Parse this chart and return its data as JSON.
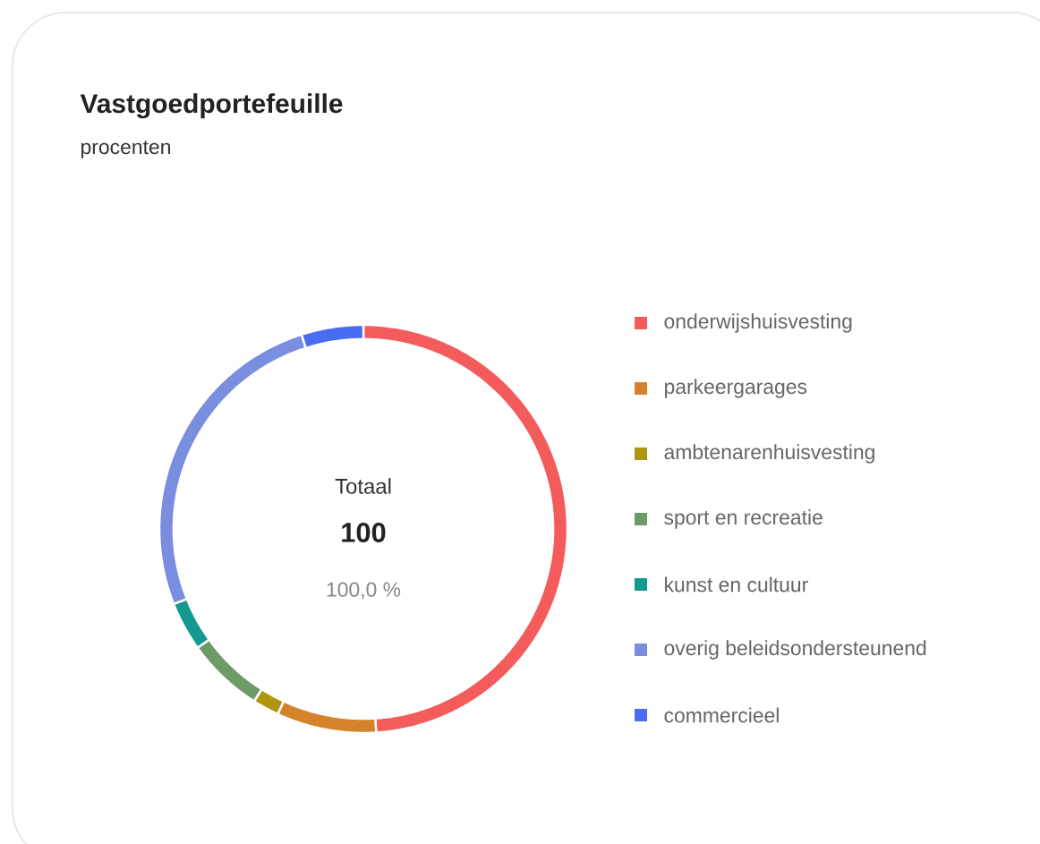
{
  "chart_data": {
    "type": "donut",
    "title": "Vastgoedportefeuille",
    "subtitle": "procenten",
    "categories": [
      "onderwijshuisvesting",
      "parkeergarages",
      "ambtenarenhuisvesting",
      "sport en recreatie",
      "kunst en cultuur",
      "overig beleidsondersteunend",
      "commercieel"
    ],
    "values": [
      49.0,
      7.9,
      2.1,
      6.1,
      3.9,
      26.1,
      4.9
    ],
    "colors": [
      "#f45b5b",
      "#d4832b",
      "#b0960f",
      "#6e9a68",
      "#13998f",
      "#7a8ee0",
      "#4a6cf2"
    ],
    "legend": "right",
    "annotations": [
      "Totaal",
      "100",
      "100,0 %"
    ]
  }
}
